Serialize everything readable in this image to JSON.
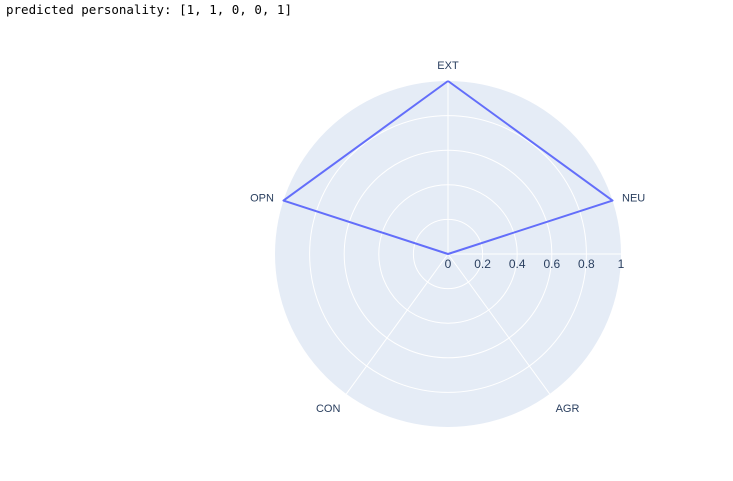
{
  "output": {
    "text": "predicted personality: [1, 1, 0, 0, 1]"
  },
  "chart_data": {
    "type": "radar",
    "categories": [
      "EXT",
      "NEU",
      "AGR",
      "CON",
      "OPN"
    ],
    "series": [
      {
        "values": [
          1,
          1,
          0,
          0,
          1
        ],
        "color": "#636efa"
      }
    ],
    "radial_range": [
      0,
      1
    ],
    "radial_ticks": [
      "0",
      "0.2",
      "0.4",
      "0.6",
      "0.8",
      "1"
    ],
    "radial_tick_values": [
      0,
      0.2,
      0.4,
      0.6,
      0.8,
      1
    ],
    "background_color": "#e5ecf6",
    "grid": true
  }
}
